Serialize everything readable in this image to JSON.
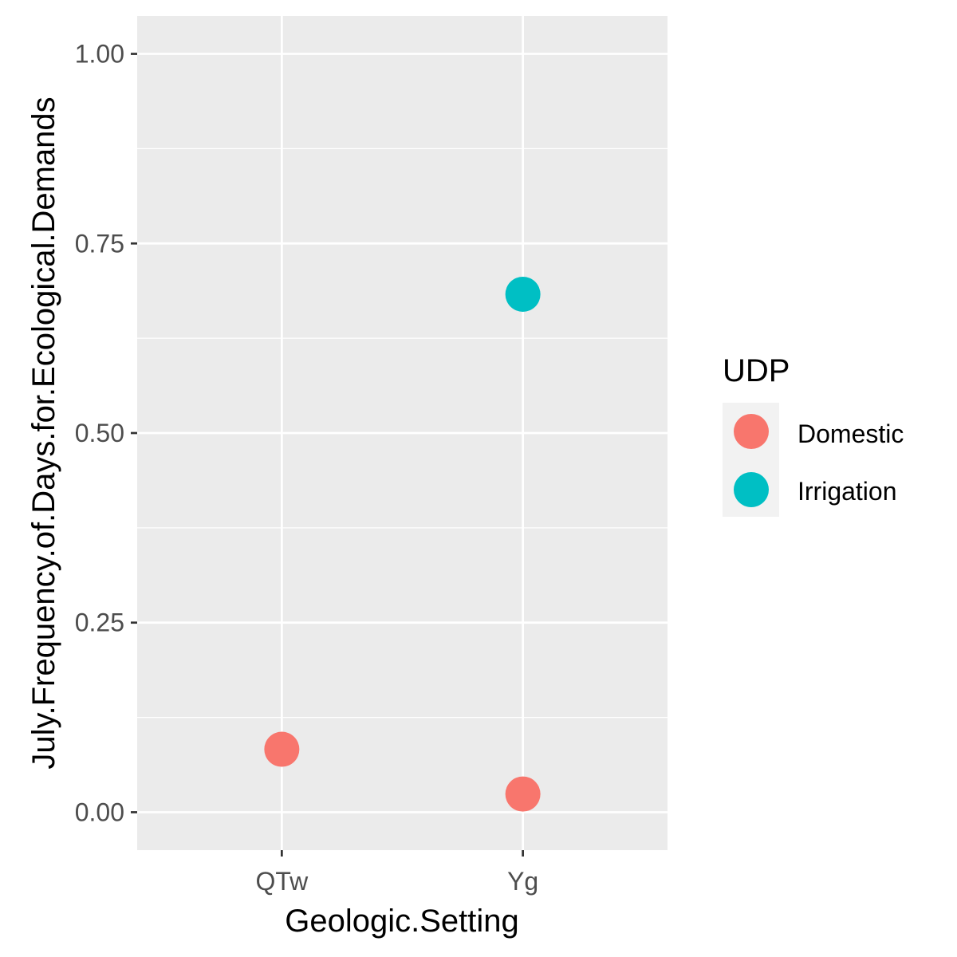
{
  "chart_data": {
    "type": "scatter",
    "xlabel": "Geologic.Setting",
    "ylabel": "July.Frequency.of.Days.for.Ecological.Demands",
    "categories": [
      "QTw",
      "Yg"
    ],
    "ylim": [
      -0.05,
      1.05
    ],
    "yticks": [
      0.0,
      0.25,
      0.5,
      0.75,
      1.0
    ],
    "ytick_labels": [
      "0.00",
      "0.25",
      "0.50",
      "0.75",
      "1.00"
    ],
    "grid": true,
    "legend": {
      "title": "UDP",
      "placement": "right",
      "entries": [
        {
          "label": "Domestic",
          "color": "#F8766D"
        },
        {
          "label": "Irrigation",
          "color": "#00BFC4"
        }
      ]
    },
    "series": [
      {
        "name": "Domestic",
        "color": "#F8766D",
        "points": [
          {
            "x": "QTw",
            "y": 0.083
          },
          {
            "x": "Yg",
            "y": 0.024
          }
        ]
      },
      {
        "name": "Irrigation",
        "color": "#00BFC4",
        "points": [
          {
            "x": "Yg",
            "y": 0.683
          }
        ]
      }
    ],
    "colors": {
      "panel": "#EBEBEB",
      "grid": "#FFFFFF",
      "tick_text": "#4D4D4D",
      "axis_title": "#000000"
    }
  }
}
